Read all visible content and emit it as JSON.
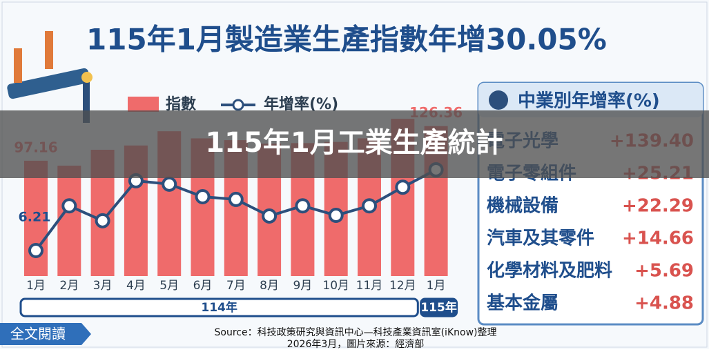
{
  "chart_data": {
    "type": "bar-line",
    "title": "115年1月製造業生產指數年增30.05%",
    "categories": [
      "1月",
      "2月",
      "3月",
      "4月",
      "5月",
      "6月",
      "7月",
      "8月",
      "9月",
      "10月",
      "11月",
      "12月",
      "1月"
    ],
    "groups": [
      {
        "label": "114年",
        "count": 12
      },
      {
        "label": "115年",
        "count": 1
      }
    ],
    "series": [
      {
        "name": "指數",
        "kind": "bar",
        "color": "#ef6b6b",
        "values": [
          97.16,
          93,
          106.4,
          110,
          122,
          116,
          114.5,
          111.6,
          112,
          113,
          116,
          132.5,
          126.36
        ],
        "value_labels": [
          "97.16",
          null,
          null,
          null,
          null,
          null,
          null,
          null,
          null,
          null,
          null,
          null,
          "126.36"
        ]
      },
      {
        "name": "年增率(%)",
        "kind": "line",
        "color": "#2c4f7c",
        "values": [
          6.21,
          19.4,
          15.0,
          26.8,
          25.8,
          22.1,
          21.3,
          16.4,
          19.4,
          16.6,
          19.4,
          24.9,
          30.05
        ],
        "value_labels": [
          "6.21",
          null,
          null,
          null,
          null,
          null,
          null,
          null,
          null,
          null,
          null,
          null,
          null
        ]
      }
    ]
  },
  "panel": {
    "title": "中業別年增率(%)",
    "rows": [
      [
        "電子光學",
        "+139.40"
      ],
      [
        "電子零組件",
        "+25.21"
      ],
      [
        "機械設備",
        "+22.29"
      ],
      [
        "汽車及其零件",
        "+14.66"
      ],
      [
        "化學材料及肥料",
        "+5.69"
      ],
      [
        "基本金屬",
        "+4.88"
      ]
    ]
  },
  "overlay": "115年1月工業生產統計",
  "button": "全文閱讀",
  "source": [
    "Source：科技政策研究與資訊中心—科技產業資訊室(iKnow)整理",
    "2026年3月，圖片來源：經濟部"
  ]
}
